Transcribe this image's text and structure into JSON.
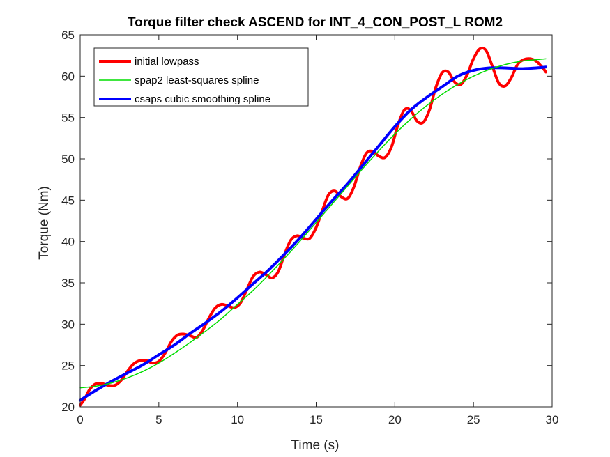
{
  "chart_data": {
    "type": "line",
    "title": "Torque filter check ASCEND for INT_4_CON_POST_L ROM2",
    "xlabel": "Time (s)",
    "ylabel": "Torque (Nm)",
    "xlim": [
      0,
      30
    ],
    "ylim": [
      20,
      65
    ],
    "xticks": [
      0,
      5,
      10,
      15,
      20,
      25,
      30
    ],
    "yticks": [
      20,
      25,
      30,
      35,
      40,
      45,
      50,
      55,
      60,
      65
    ],
    "grid": false,
    "legend_position": "top-left",
    "series": [
      {
        "name": "initial lowpass",
        "color": "#ff0000",
        "line_width": "thick",
        "x": [
          0,
          0.3,
          0.6,
          1.0,
          1.4,
          1.8,
          2.2,
          2.6,
          3.0,
          3.4,
          3.8,
          4.2,
          4.6,
          5.0,
          5.4,
          5.8,
          6.2,
          6.6,
          7.0,
          7.4,
          7.8,
          8.2,
          8.6,
          9.0,
          9.4,
          9.8,
          10.2,
          10.6,
          11.0,
          11.4,
          11.8,
          12.2,
          12.6,
          13.0,
          13.4,
          13.8,
          14.2,
          14.6,
          15.0,
          15.4,
          15.8,
          16.2,
          16.6,
          17.0,
          17.4,
          17.8,
          18.2,
          18.6,
          19.0,
          19.4,
          19.8,
          20.2,
          20.6,
          21.0,
          21.4,
          21.8,
          22.2,
          22.6,
          23.0,
          23.4,
          23.8,
          24.2,
          24.6,
          25.0,
          25.4,
          25.8,
          26.2,
          26.6,
          27.0,
          27.4,
          27.8,
          28.2,
          28.6,
          29.0,
          29.4,
          29.6
        ],
        "y": [
          20.2,
          21.0,
          22.1,
          22.8,
          22.8,
          22.6,
          22.6,
          23.2,
          24.3,
          25.2,
          25.6,
          25.6,
          25.3,
          25.5,
          26.5,
          27.9,
          28.7,
          28.8,
          28.6,
          28.4,
          29.3,
          30.8,
          32.0,
          32.4,
          32.2,
          32.0,
          32.6,
          34.2,
          35.8,
          36.3,
          36.0,
          35.6,
          36.4,
          38.5,
          40.2,
          40.7,
          40.4,
          40.4,
          41.7,
          43.8,
          45.7,
          46.1,
          45.4,
          45.2,
          46.6,
          49.0,
          50.7,
          50.9,
          50.3,
          50.2,
          51.5,
          54.1,
          55.9,
          55.9,
          54.6,
          54.4,
          55.9,
          58.6,
          60.4,
          60.5,
          59.3,
          59.0,
          60.2,
          62.1,
          63.3,
          63.1,
          61.2,
          59.2,
          58.8,
          59.8,
          61.4,
          62.0,
          62.1,
          61.8,
          61.0,
          60.5
        ]
      },
      {
        "name": "spap2 least-squares spline",
        "color": "#00dd00",
        "line_width": "thin",
        "x": [
          0,
          1,
          2,
          3,
          4,
          5,
          6,
          7,
          8,
          9,
          10,
          11,
          12,
          13,
          14,
          15,
          16,
          17,
          18,
          19,
          20,
          21,
          22,
          23,
          24,
          25,
          26,
          27,
          28,
          29,
          29.6
        ],
        "y": [
          22.3,
          22.5,
          22.9,
          23.5,
          24.3,
          25.3,
          26.5,
          27.8,
          29.2,
          30.7,
          32.4,
          34.1,
          36.0,
          38.0,
          40.1,
          42.3,
          44.5,
          46.7,
          48.9,
          51.0,
          53.0,
          54.8,
          56.4,
          57.8,
          59.0,
          60.0,
          60.8,
          61.4,
          61.8,
          62.0,
          62.1
        ]
      },
      {
        "name": "csaps cubic smoothing spline",
        "color": "#0000ff",
        "line_width": "thick",
        "x": [
          0,
          1,
          2,
          3,
          4,
          5,
          6,
          7,
          8,
          9,
          10,
          11,
          12,
          13,
          14,
          15,
          16,
          17,
          18,
          19,
          20,
          21,
          22,
          23,
          24,
          25,
          26,
          27,
          28,
          29,
          29.6
        ],
        "y": [
          20.8,
          22.0,
          23.1,
          24.1,
          25.1,
          26.3,
          27.5,
          28.9,
          30.2,
          31.6,
          33.2,
          34.9,
          36.6,
          38.5,
          40.5,
          42.7,
          44.9,
          47.0,
          49.3,
          51.6,
          53.9,
          55.9,
          57.4,
          58.7,
          60.0,
          60.7,
          61.0,
          61.0,
          60.9,
          61.0,
          61.1
        ]
      }
    ]
  }
}
